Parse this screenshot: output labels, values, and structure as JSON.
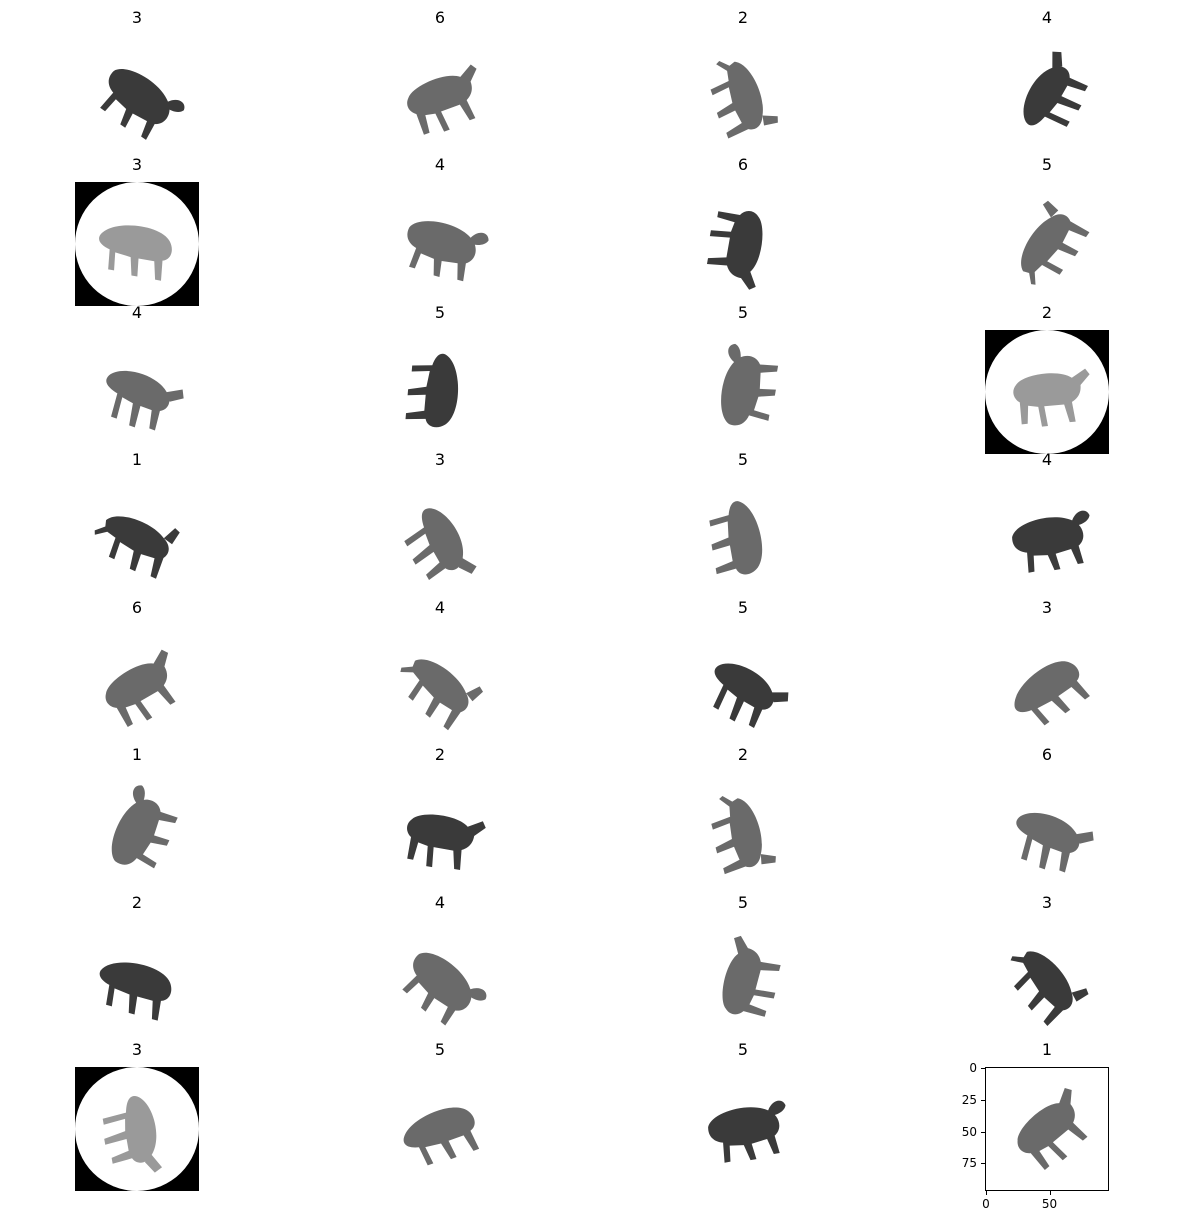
{
  "grid": {
    "rows": 8,
    "cols": 4,
    "cells": [
      {
        "title": "3",
        "style": "plain",
        "pose": "a",
        "rot": 35
      },
      {
        "title": "6",
        "style": "plain",
        "pose": "b",
        "rot": -20
      },
      {
        "title": "2",
        "style": "plain",
        "pose": "c",
        "rot": 70
      },
      {
        "title": "4",
        "style": "plain",
        "pose": "d",
        "rot": -60
      },
      {
        "title": "3",
        "style": "circle",
        "pose": "e",
        "rot": 10
      },
      {
        "title": "4",
        "style": "plain",
        "pose": "a",
        "rot": 15
      },
      {
        "title": "6",
        "style": "plain",
        "pose": "b",
        "rot": 100
      },
      {
        "title": "5",
        "style": "plain",
        "pose": "c",
        "rot": -55
      },
      {
        "title": "4",
        "style": "plain",
        "pose": "d",
        "rot": 20
      },
      {
        "title": "5",
        "style": "plain",
        "pose": "e",
        "rot": 95
      },
      {
        "title": "5",
        "style": "plain",
        "pose": "a",
        "rot": -80
      },
      {
        "title": "2",
        "style": "circle",
        "pose": "b",
        "rot": -5
      },
      {
        "title": "1",
        "style": "plain",
        "pose": "c",
        "rot": 25
      },
      {
        "title": "3",
        "style": "plain",
        "pose": "d",
        "rot": 60
      },
      {
        "title": "5",
        "style": "plain",
        "pose": "e",
        "rot": 80
      },
      {
        "title": "4",
        "style": "plain",
        "pose": "a",
        "rot": -10
      },
      {
        "title": "6",
        "style": "plain",
        "pose": "b",
        "rot": -30
      },
      {
        "title": "4",
        "style": "plain",
        "pose": "c",
        "rot": 40
      },
      {
        "title": "5",
        "style": "plain",
        "pose": "d",
        "rot": 30
      },
      {
        "title": "3",
        "style": "plain",
        "pose": "e",
        "rot": -35
      },
      {
        "title": "1",
        "style": "plain",
        "pose": "a",
        "rot": -65
      },
      {
        "title": "2",
        "style": "plain",
        "pose": "b",
        "rot": 10
      },
      {
        "title": "2",
        "style": "plain",
        "pose": "c",
        "rot": 75
      },
      {
        "title": "6",
        "style": "plain",
        "pose": "d",
        "rot": 20
      },
      {
        "title": "2",
        "style": "plain",
        "pose": "e",
        "rot": 15
      },
      {
        "title": "4",
        "style": "plain",
        "pose": "a",
        "rot": 40
      },
      {
        "title": "5",
        "style": "plain",
        "pose": "b",
        "rot": -75
      },
      {
        "title": "3",
        "style": "plain",
        "pose": "c",
        "rot": 50
      },
      {
        "title": "3",
        "style": "circle",
        "pose": "d",
        "rot": 80
      },
      {
        "title": "5",
        "style": "plain",
        "pose": "e",
        "rot": -20
      },
      {
        "title": "5",
        "style": "plain",
        "pose": "a",
        "rot": -10
      },
      {
        "title": "1",
        "style": "axes",
        "pose": "b",
        "rot": -40
      }
    ]
  },
  "axes": {
    "yticks": [
      "0",
      "25",
      "50",
      "75"
    ],
    "xticks": [
      "0",
      "50"
    ],
    "extent": [
      0,
      96
    ]
  },
  "colors": {
    "silhouette_dark": "#3a3a3a",
    "silhouette_mid": "#6a6a6a",
    "silhouette_light": "#9a9a9a",
    "vignette": "#000000"
  }
}
